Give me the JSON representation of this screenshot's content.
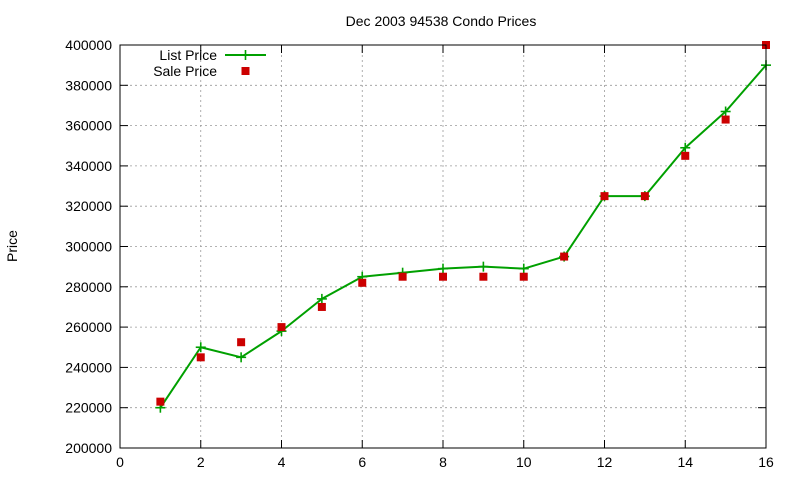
{
  "chart_data": {
    "type": "line",
    "title": "Dec 2003 94538 Condo Prices",
    "xlabel": "",
    "ylabel": "Price",
    "xlim": [
      0,
      16
    ],
    "ylim": [
      200000,
      400000
    ],
    "x_ticks": [
      0,
      2,
      4,
      6,
      8,
      10,
      12,
      14,
      16
    ],
    "y_ticks": [
      200000,
      220000,
      240000,
      260000,
      280000,
      300000,
      320000,
      340000,
      360000,
      380000,
      400000
    ],
    "grid": true,
    "legend_position": "top-left",
    "series": [
      {
        "name": "List Price",
        "style": "line-with-plus-markers",
        "color": "#00a000",
        "x": [
          1,
          2,
          3,
          4,
          5,
          6,
          7,
          8,
          9,
          10,
          11,
          12,
          13,
          14,
          15,
          16
        ],
        "values": [
          220000,
          250000,
          245000,
          258000,
          274000,
          285000,
          287000,
          289000,
          290000,
          289000,
          295000,
          325000,
          325000,
          349000,
          367000,
          390000
        ]
      },
      {
        "name": "Sale Price",
        "style": "square-markers",
        "color": "#cc0000",
        "x": [
          1,
          2,
          3,
          4,
          5,
          6,
          7,
          8,
          9,
          10,
          11,
          12,
          13,
          14,
          15,
          16
        ],
        "values": [
          223000,
          245000,
          252500,
          260000,
          270000,
          282000,
          285000,
          285000,
          285000,
          285000,
          295000,
          325000,
          325000,
          345000,
          363000,
          400000
        ]
      }
    ]
  }
}
